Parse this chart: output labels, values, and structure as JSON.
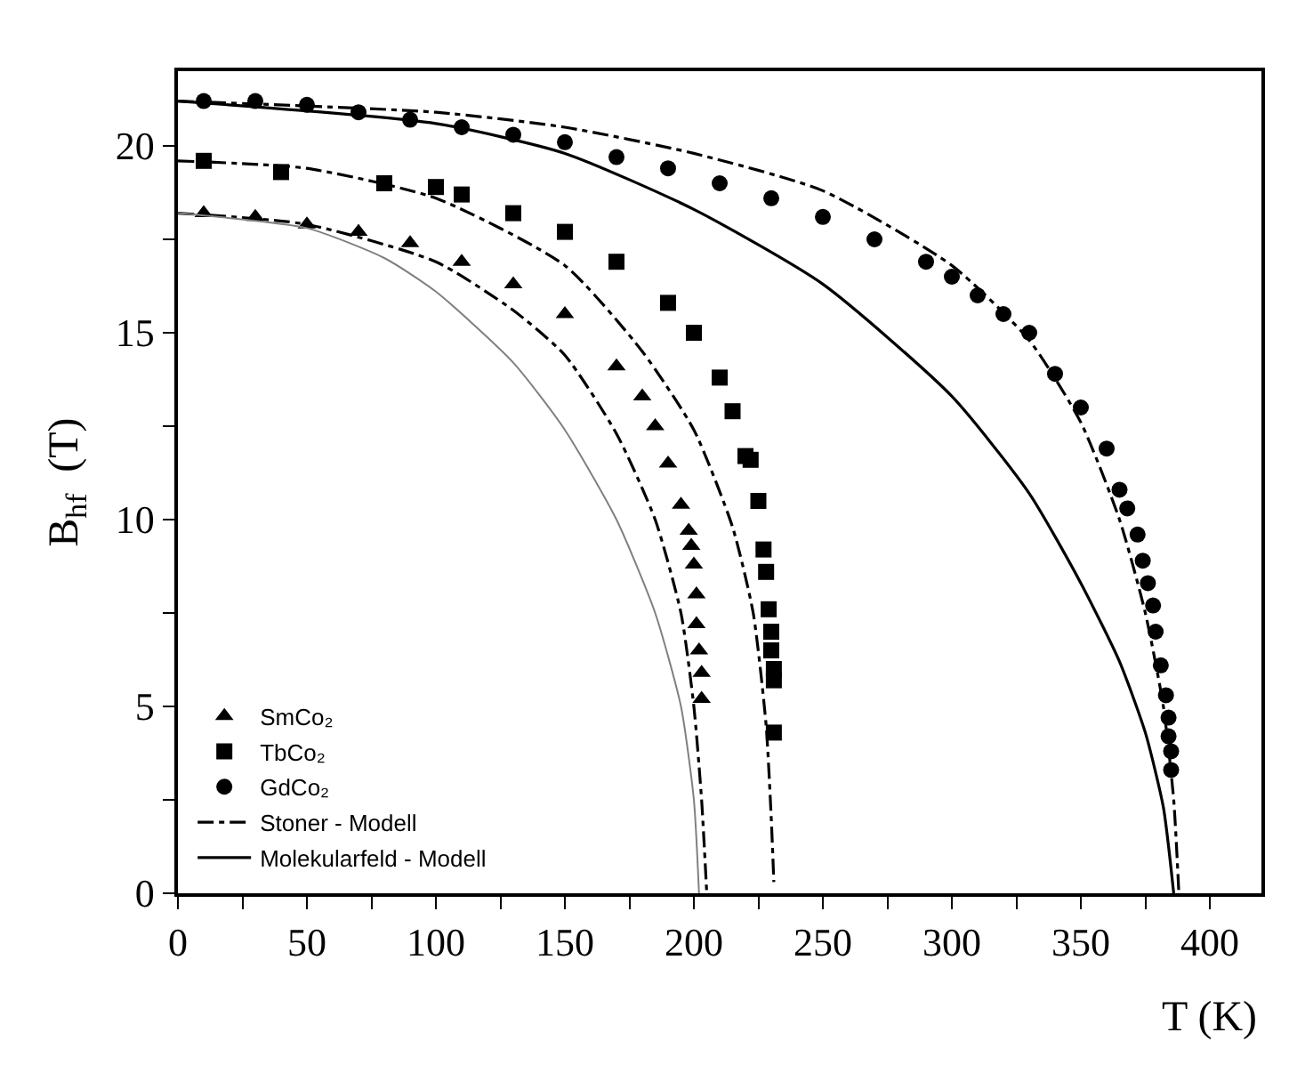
{
  "chart_data": {
    "type": "scatter",
    "xlabel": "T (K)",
    "ylabel": "B$_{hf}$  (T)",
    "xlim": [
      0,
      420
    ],
    "ylim": [
      0,
      22
    ],
    "xticks": [
      0,
      {
        "value": 25,
        "label": null
      },
      50,
      {
        "value": 75,
        "label": null
      },
      100,
      {
        "value": 125,
        "label": null
      },
      150,
      {
        "value": 175,
        "label": null
      },
      200,
      {
        "value": 225,
        "label": null
      },
      250,
      {
        "value": 275,
        "label": null
      },
      300,
      {
        "value": 325,
        "label": null
      },
      350,
      {
        "value": 375,
        "label": null
      },
      400
    ],
    "yticks": [
      0,
      {
        "value": 2.5,
        "label": null
      },
      5,
      {
        "value": 7.5,
        "label": null
      },
      10,
      {
        "value": 12.5,
        "label": null
      },
      15,
      {
        "value": 17.5,
        "label": null
      },
      20
    ],
    "legend": "bottom left",
    "series": [
      {
        "name": "SmCo₂",
        "marker": "triangle",
        "color": "#000000",
        "x": [
          10,
          30,
          50,
          70,
          90,
          110,
          130,
          150,
          170,
          180,
          185,
          190,
          195,
          198,
          199,
          200,
          201,
          201,
          202,
          203,
          203
        ],
        "values": [
          18.2,
          18.1,
          17.9,
          17.7,
          17.4,
          16.9,
          16.3,
          15.5,
          14.1,
          13.3,
          12.5,
          11.5,
          10.4,
          9.7,
          9.3,
          8.8,
          8.0,
          7.2,
          6.5,
          5.9,
          5.2
        ]
      },
      {
        "name": "TbCo₂",
        "marker": "square",
        "color": "#000000",
        "x": [
          10,
          40,
          80,
          100,
          110,
          130,
          150,
          170,
          190,
          200,
          210,
          215,
          220,
          222,
          225,
          227,
          228,
          229,
          230,
          230,
          231,
          231,
          231
        ],
        "values": [
          19.6,
          19.3,
          19.0,
          18.9,
          18.7,
          18.2,
          17.7,
          16.9,
          15.8,
          15.0,
          13.8,
          12.9,
          11.7,
          11.6,
          10.5,
          9.2,
          8.6,
          7.6,
          7.0,
          6.5,
          6.0,
          5.7,
          4.3
        ]
      },
      {
        "name": "GdCo₂",
        "marker": "circle",
        "color": "#000000",
        "x": [
          10,
          30,
          50,
          70,
          90,
          110,
          130,
          150,
          170,
          190,
          210,
          230,
          250,
          270,
          290,
          300,
          310,
          320,
          330,
          340,
          350,
          360,
          365,
          368,
          372,
          374,
          376,
          378,
          379,
          381,
          383,
          384,
          384,
          385,
          385
        ],
        "values": [
          21.2,
          21.2,
          21.1,
          20.9,
          20.7,
          20.5,
          20.3,
          20.1,
          19.7,
          19.4,
          19.0,
          18.6,
          18.1,
          17.5,
          16.9,
          16.5,
          16.0,
          15.5,
          15.0,
          13.9,
          13.0,
          11.9,
          10.8,
          10.3,
          9.6,
          8.9,
          8.3,
          7.7,
          7.0,
          6.1,
          5.3,
          4.7,
          4.2,
          3.8,
          3.3
        ]
      },
      {
        "name": "Stoner - Modell",
        "type": "line",
        "line_style": "dashed",
        "marker": "none",
        "color": "#000000",
        "x": [
          0,
          50,
          100,
          130,
          150,
          170,
          185,
          195,
          200,
          203,
          205
        ],
        "values": [
          18.2,
          17.9,
          16.9,
          15.6,
          14.4,
          12.3,
          10.0,
          7.5,
          5.0,
          2.5,
          0
        ]
      },
      {
        "type": "line",
        "line_style": "dashed",
        "marker": "none",
        "color": "#000000",
        "x": [
          0,
          50,
          100,
          150,
          180,
          200,
          215,
          223,
          228,
          230,
          231
        ],
        "values": [
          19.6,
          19.4,
          18.6,
          16.8,
          14.5,
          12.4,
          9.8,
          7.5,
          4.5,
          2.0,
          0.3
        ]
      },
      {
        "type": "line",
        "line_style": "dashed",
        "marker": "none",
        "color": "#000000",
        "x": [
          0,
          100,
          150,
          200,
          250,
          300,
          330,
          350,
          365,
          375,
          382,
          386,
          388
        ],
        "values": [
          21.2,
          20.9,
          20.5,
          19.8,
          18.8,
          16.8,
          14.8,
          12.6,
          10.0,
          7.5,
          5.0,
          2.5,
          0
        ]
      },
      {
        "type": "line",
        "line_style": "solid",
        "marker": "none",
        "color": "#808080",
        "x": [
          0,
          50,
          80,
          100,
          130,
          150,
          170,
          185,
          195,
          200,
          202
        ],
        "values": [
          18.2,
          17.8,
          17.0,
          16.1,
          14.2,
          12.4,
          10.0,
          7.5,
          5.0,
          2.5,
          0
        ]
      },
      {
        "name": "Molekularfeld - Modell",
        "type": "line",
        "line_style": "solid",
        "marker": "none",
        "color": "#000000",
        "x": [
          0,
          100,
          150,
          200,
          250,
          300,
          330,
          350,
          365,
          375,
          382,
          386
        ],
        "values": [
          21.2,
          20.6,
          19.8,
          18.3,
          16.3,
          13.3,
          10.7,
          8.3,
          6.2,
          4.3,
          2.3,
          0
        ]
      }
    ]
  }
}
